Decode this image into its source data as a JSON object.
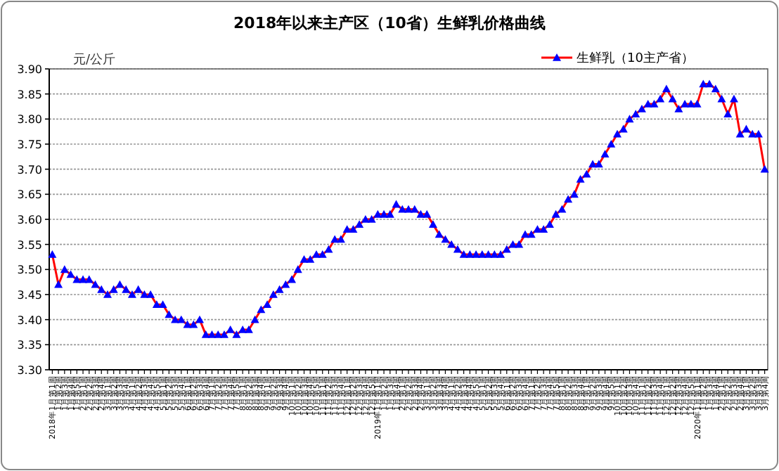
{
  "chart_data": {
    "type": "line",
    "title": "2018年以来主产区（10省）生鲜乳价格曲线",
    "ylabel": "元/公斤",
    "categories": [
      "2018年1月第1周",
      "1月第2周",
      "1月第3周",
      "1月第4周",
      "1月第5周",
      "2月第1周",
      "2月第2周",
      "2月第3周",
      "2月第4周",
      "3月第1周",
      "3月第2周",
      "3月第3周",
      "3月第4周",
      "4月第1周",
      "4月第2周",
      "4月第3周",
      "4月第4周",
      "4月第5周",
      "5月第1周",
      "5月第2周",
      "5月第3周",
      "5月第4周",
      "6月第1周",
      "6月第2周",
      "6月第3周",
      "6月第4周",
      "7月第1周",
      "7月第2周",
      "7月第3周",
      "7月第4周",
      "7月第5周",
      "8月第1周",
      "8月第2周",
      "8月第3周",
      "8月第4周",
      "9月第1周",
      "9月第2周",
      "9月第3周",
      "9月第4周",
      "10月第1周",
      "10月第2周",
      "10月第3周",
      "10月第4周",
      "10月第5周",
      "11月第1周",
      "11月第2周",
      "11月第3周",
      "11月第4周",
      "12月第1周",
      "12月第2周",
      "12月第3周",
      "12月第4周",
      "12月第5周",
      "2019年1月第1周",
      "1月第2周",
      "1月第3周",
      "1月第4周",
      "2月第1周",
      "2月第2周",
      "2月第3周",
      "2月第4周",
      "3月第1周",
      "3月第2周",
      "3月第3周",
      "3月第4周",
      "4月第1周",
      "4月第2周",
      "4月第3周",
      "4月第4周",
      "4月第5周",
      "5月第1周",
      "5月第2周",
      "5月第3周",
      "5月第4周",
      "6月第1周",
      "6月第2周",
      "6月第3周",
      "6月第4周",
      "7月第1周",
      "7月第2周",
      "7月第3周",
      "7月第4周",
      "7月第5周",
      "8月第1周",
      "8月第2周",
      "8月第3周",
      "8月第4周",
      "9月第1周",
      "9月第2周",
      "9月第3周",
      "9月第4周",
      "9月第5周",
      "10月第1周",
      "10月第2周",
      "10月第3周",
      "10月第4周",
      "11月第1周",
      "11月第2周",
      "11月第3周",
      "11月第4周",
      "12月第1周",
      "12月第2周",
      "12月第3周",
      "12月第4周",
      "12月第5周",
      "2020年1月第1周",
      "1月第2周",
      "1月第3周",
      "1月第4周",
      "2月第1周",
      "2月第2周",
      "2月第3周",
      "2月第4周",
      "3月第1周",
      "3月第2周",
      "3月第3周",
      "3月第4周"
    ],
    "series": [
      {
        "name": "生鲜乳（10主产省）",
        "color": "#ff0000",
        "colors": [
          "#0000ff",
          "#0000ff",
          "#0000ff",
          "#0000ff",
          "#0000ff",
          "#0000ff",
          "#0000ff",
          "#0000ff",
          "#0000ff",
          "#0000ff",
          "#0000ff",
          "#0000ff",
          "#0000ff",
          "#0000ff",
          "#0000ff",
          "#0000ff",
          "#0000ff",
          "#0000ff",
          "#0000ff",
          "#0000ff",
          "#0000ff",
          "#0000ff",
          "#0000ff",
          "#0000ff",
          "#0000ff",
          "#0000ff",
          "#0000ff",
          "#0000ff",
          "#0000ff",
          "#0000ff",
          "#0000ff",
          "#0000ff",
          "#0000ff",
          "#0000ff",
          "#0000ff",
          "#0000ff",
          "#0000ff",
          "#0000ff",
          "#0000ff",
          "#0000ff",
          "#0000ff",
          "#0000ff",
          "#0000ff",
          "#0000ff",
          "#0000ff",
          "#0000ff",
          "#0000ff",
          "#0000ff",
          "#0000ff",
          "#0000ff",
          "#0000ff",
          "#0000ff",
          "#0000ff",
          "#0000ff",
          "#0000ff",
          "#0000ff",
          "#0000ff",
          "#0000ff",
          "#0000ff",
          "#0000ff",
          "#0000ff",
          "#0000ff",
          "#0000ff",
          "#0000ff",
          "#0000ff",
          "#0000ff",
          "#0000ff",
          "#0000ff",
          "#0000ff",
          "#0000ff",
          "#0000ff",
          "#0000ff",
          "#0000ff",
          "#0000ff",
          "#0000ff",
          "#0000ff",
          "#0000ff",
          "#0000ff",
          "#0000ff",
          "#0000ff",
          "#0000ff",
          "#0000ff",
          "#0000ff",
          "#0000ff",
          "#0000ff",
          "#0000ff",
          "#0000ff",
          "#0000ff",
          "#0000ff",
          "#0000ff",
          "#0000ff",
          "#0000ff",
          "#0000ff",
          "#0000ff",
          "#0000ff",
          "#0000ff",
          "#0000ff",
          "#0000ff",
          "#0000ff",
          "#0000ff",
          "#0000ff",
          "#0000ff",
          "#0000ff",
          "#0000ff",
          "#0000ff",
          "#0000ff",
          "#0000ff",
          "#0000ff",
          "#0000ff",
          "#0000ff",
          "#0000ff",
          "#0000ff",
          "#0000ff",
          "#0000ff",
          "#0000ff",
          "#0000ff",
          "#0000ff"
        ],
        "values": [
          3.53,
          3.47,
          3.5,
          3.49,
          3.48,
          3.48,
          3.48,
          3.47,
          3.46,
          3.45,
          3.46,
          3.47,
          3.46,
          3.45,
          3.46,
          3.45,
          3.45,
          3.43,
          3.43,
          3.41,
          3.4,
          3.4,
          3.39,
          3.39,
          3.4,
          3.37,
          3.37,
          3.37,
          3.37,
          3.38,
          3.37,
          3.38,
          3.38,
          3.4,
          3.42,
          3.43,
          3.45,
          3.46,
          3.47,
          3.48,
          3.5,
          3.52,
          3.52,
          3.53,
          3.53,
          3.54,
          3.56,
          3.56,
          3.58,
          3.58,
          3.59,
          3.6,
          3.6,
          3.61,
          3.61,
          3.61,
          3.63,
          3.62,
          3.62,
          3.62,
          3.61,
          3.61,
          3.59,
          3.57,
          3.56,
          3.55,
          3.54,
          3.53,
          3.53,
          3.53,
          3.53,
          3.53,
          3.53,
          3.53,
          3.54,
          3.55,
          3.55,
          3.57,
          3.57,
          3.58,
          3.58,
          3.59,
          3.61,
          3.62,
          3.64,
          3.65,
          3.68,
          3.69,
          3.71,
          3.71,
          3.73,
          3.75,
          3.77,
          3.78,
          3.8,
          3.81,
          3.82,
          3.83,
          3.83,
          3.84,
          3.86,
          3.84,
          3.82,
          3.83,
          3.83,
          3.83,
          3.87,
          3.87,
          3.86,
          3.84,
          3.81,
          3.84,
          3.77,
          3.78,
          3.77,
          3.77,
          3.7
        ]
      }
    ],
    "ylim": [
      3.3,
      3.9
    ],
    "yticks": [
      {
        "value": 3.3,
        "label": "3.30"
      },
      {
        "value": 3.35,
        "label": "3.35"
      },
      {
        "value": 3.4,
        "label": "3.40"
      },
      {
        "value": 3.45,
        "label": "3.45"
      },
      {
        "value": 3.5,
        "label": "3.50"
      },
      {
        "value": 3.55,
        "label": "3.55"
      },
      {
        "value": 3.6,
        "label": "3.60"
      },
      {
        "value": 3.65,
        "label": "3.65"
      },
      {
        "value": 3.7,
        "label": "3.70"
      },
      {
        "value": 3.75,
        "label": "3.75"
      },
      {
        "value": 3.8,
        "label": "3.80"
      },
      {
        "value": 3.85,
        "label": "3.85"
      },
      {
        "value": 3.9,
        "label": "3.90"
      }
    ],
    "grid": "y",
    "legend": "top right",
    "marker": "triangle",
    "line_style": "solid"
  }
}
